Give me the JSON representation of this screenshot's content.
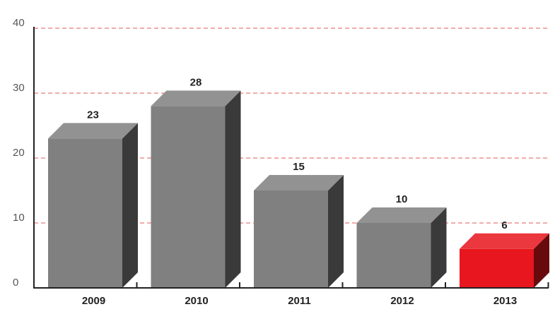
{
  "chart_data": {
    "type": "bar",
    "title": "",
    "xlabel": "",
    "ylabel": "",
    "categories": [
      "2009",
      "2010",
      "2011",
      "2012",
      "2013"
    ],
    "values": [
      23,
      28,
      15,
      10,
      6
    ],
    "data_labels": [
      "23",
      "28",
      "15",
      "10",
      "6"
    ],
    "ylim": [
      0,
      40
    ],
    "yticks": [
      0,
      10,
      20,
      30,
      40
    ],
    "ytick_labels": [
      "0",
      "10",
      "20",
      "30",
      "40"
    ],
    "grid": true,
    "gridline_style": "dashed",
    "bar_style": "3d-box",
    "highlight_category": "2013",
    "colors": {
      "bar": "#808080",
      "highlight": "#e8161e",
      "gridline": "#e15a5a",
      "axis": "#222222"
    }
  }
}
